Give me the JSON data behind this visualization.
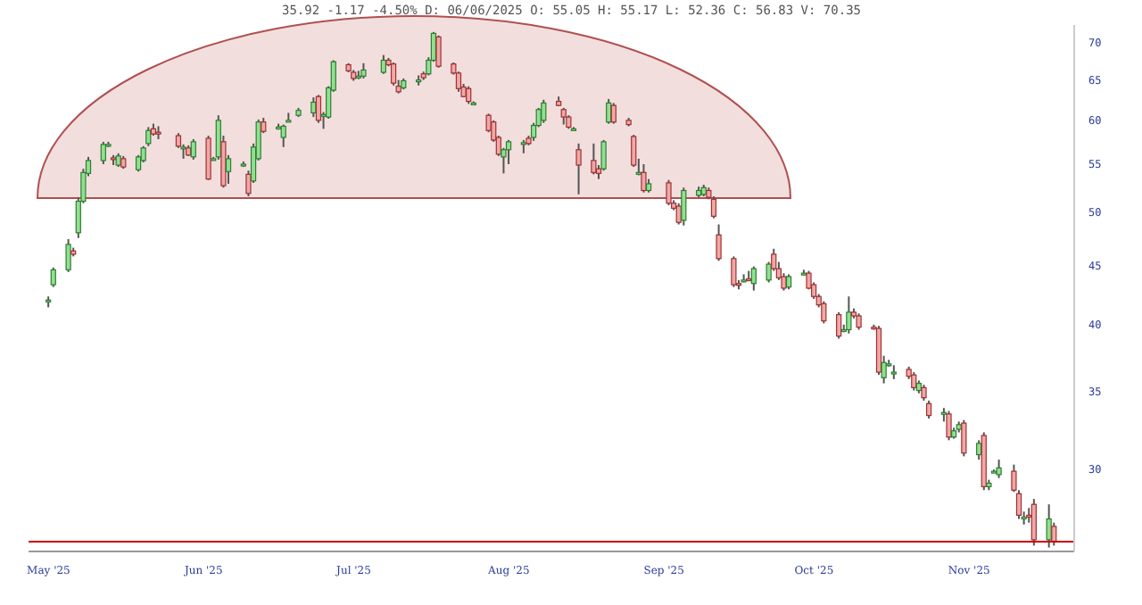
{
  "chart_data": {
    "type": "candlestick",
    "subtitle": "35.92 -1.17 -4.50% D: 06/06/2025 O: 55.05 H: 55.17 L: 52.36 C: 56.83 V: 70.35",
    "x": [
      "2025-05-01",
      "2025-05-02",
      "2025-05-05",
      "2025-05-06",
      "2025-05-07",
      "2025-05-08",
      "2025-05-09",
      "2025-05-12",
      "2025-05-13",
      "2025-05-14",
      "2025-05-15",
      "2025-05-16",
      "2025-05-19",
      "2025-05-20",
      "2025-05-21",
      "2025-05-22",
      "2025-05-23",
      "2025-05-27",
      "2025-05-28",
      "2025-05-29",
      "2025-05-30",
      "2025-06-02",
      "2025-06-03",
      "2025-06-04",
      "2025-06-05",
      "2025-06-06",
      "2025-06-09",
      "2025-06-10",
      "2025-06-11",
      "2025-06-12",
      "2025-06-13",
      "2025-06-16",
      "2025-06-17",
      "2025-06-18",
      "2025-06-20",
      "2025-06-23",
      "2025-06-24",
      "2025-06-25",
      "2025-06-26",
      "2025-06-27",
      "2025-06-30",
      "2025-07-01",
      "2025-07-02",
      "2025-07-03",
      "2025-07-07",
      "2025-07-08",
      "2025-07-09",
      "2025-07-10",
      "2025-07-11",
      "2025-07-14",
      "2025-07-15",
      "2025-07-16",
      "2025-07-17",
      "2025-07-18",
      "2025-07-21",
      "2025-07-22",
      "2025-07-23",
      "2025-07-24",
      "2025-07-25",
      "2025-07-28",
      "2025-07-29",
      "2025-07-30",
      "2025-07-31",
      "2025-08-01",
      "2025-08-04",
      "2025-08-05",
      "2025-08-06",
      "2025-08-07",
      "2025-08-08",
      "2025-08-11",
      "2025-08-12",
      "2025-08-13",
      "2025-08-14",
      "2025-08-15",
      "2025-08-18",
      "2025-08-19",
      "2025-08-20",
      "2025-08-21",
      "2025-08-22",
      "2025-08-25",
      "2025-08-26",
      "2025-08-27",
      "2025-08-28",
      "2025-08-29",
      "2025-09-02",
      "2025-09-03",
      "2025-09-04",
      "2025-09-05",
      "2025-09-08",
      "2025-09-09",
      "2025-09-10",
      "2025-09-11",
      "2025-09-12",
      "2025-09-15",
      "2025-09-16",
      "2025-09-17",
      "2025-09-18",
      "2025-09-19",
      "2025-09-22",
      "2025-09-23",
      "2025-09-24",
      "2025-09-25",
      "2025-09-26",
      "2025-09-29",
      "2025-09-30",
      "2025-10-01",
      "2025-10-02",
      "2025-10-03",
      "2025-10-06",
      "2025-10-07",
      "2025-10-08",
      "2025-10-09",
      "2025-10-10",
      "2025-10-13",
      "2025-10-14",
      "2025-10-15",
      "2025-10-16",
      "2025-10-17",
      "2025-10-20",
      "2025-10-21",
      "2025-10-22",
      "2025-10-23",
      "2025-10-24",
      "2025-10-27",
      "2025-10-28",
      "2025-10-29",
      "2025-10-30",
      "2025-10-31",
      "2025-11-03",
      "2025-11-04",
      "2025-11-05",
      "2025-11-06",
      "2025-11-07",
      "2025-11-10",
      "2025-11-11",
      "2025-11-12",
      "2025-11-13",
      "2025-11-14",
      "2025-11-17",
      "2025-11-18"
    ],
    "ohlc": [
      [
        41.9,
        42.3,
        41.4,
        42.0
      ],
      [
        43.3,
        44.8,
        43.1,
        44.6
      ],
      [
        44.6,
        47.4,
        44.4,
        46.9
      ],
      [
        46.3,
        46.6,
        45.8,
        46.0
      ],
      [
        48.0,
        51.5,
        47.5,
        51.1
      ],
      [
        51.1,
        54.5,
        50.9,
        54.1
      ],
      [
        54.0,
        55.8,
        53.7,
        55.4
      ],
      [
        55.4,
        57.5,
        55.0,
        57.2
      ],
      [
        57.1,
        57.5,
        56.9,
        57.2
      ],
      [
        55.7,
        56.0,
        54.9,
        55.6
      ],
      [
        54.9,
        56.2,
        54.7,
        55.9
      ],
      [
        55.6,
        55.9,
        54.5,
        54.7
      ],
      [
        54.4,
        56.0,
        54.2,
        55.8
      ],
      [
        55.4,
        57.0,
        55.2,
        56.8
      ],
      [
        57.3,
        59.2,
        57.0,
        58.8
      ],
      [
        59.0,
        59.6,
        58.2,
        58.4
      ],
      [
        58.6,
        59.3,
        57.8,
        58.5
      ],
      [
        58.2,
        58.5,
        56.8,
        57.0
      ],
      [
        56.8,
        57.2,
        55.6,
        56.9
      ],
      [
        56.8,
        57.1,
        55.9,
        56.0
      ],
      [
        55.8,
        57.8,
        55.5,
        57.5
      ],
      [
        57.9,
        58.2,
        53.3,
        53.4
      ],
      [
        55.6,
        55.8,
        55.4,
        55.6
      ],
      [
        55.8,
        60.6,
        55.5,
        60.0
      ],
      [
        57.5,
        58.2,
        52.5,
        52.7
      ],
      [
        54.2,
        56.0,
        52.9,
        55.6
      ],
      [
        55.0,
        55.3,
        54.7,
        55.0
      ],
      [
        53.9,
        54.3,
        51.6,
        51.9
      ],
      [
        53.2,
        57.3,
        53.0,
        56.9
      ],
      [
        55.6,
        60.1,
        55.4,
        59.8
      ],
      [
        59.8,
        60.3,
        58.5,
        58.7
      ],
      [
        59.2,
        59.6,
        58.9,
        59.2
      ],
      [
        58.0,
        59.5,
        56.9,
        59.3
      ],
      [
        60.0,
        60.9,
        59.8,
        60.0
      ],
      [
        60.6,
        61.5,
        60.4,
        61.2
      ],
      [
        60.9,
        62.8,
        60.4,
        62.2
      ],
      [
        62.9,
        63.1,
        59.7,
        60.0
      ],
      [
        60.6,
        61.0,
        59.0,
        60.7
      ],
      [
        60.4,
        64.2,
        60.2,
        64.0
      ],
      [
        63.7,
        67.6,
        63.5,
        67.4
      ],
      [
        67.0,
        67.2,
        66.0,
        66.2
      ],
      [
        66.0,
        66.3,
        64.9,
        65.2
      ],
      [
        65.4,
        66.2,
        65.1,
        65.5
      ],
      [
        65.5,
        67.2,
        65.2,
        66.3
      ],
      [
        66.0,
        68.3,
        65.8,
        67.6
      ],
      [
        67.6,
        67.9,
        66.8,
        67.0
      ],
      [
        67.1,
        67.3,
        64.3,
        64.6
      ],
      [
        64.2,
        65.0,
        63.3,
        63.5
      ],
      [
        64.0,
        65.2,
        63.8,
        64.9
      ],
      [
        65.0,
        65.6,
        64.3,
        65.0
      ],
      [
        65.8,
        66.1,
        65.0,
        65.3
      ],
      [
        65.8,
        68.0,
        65.6,
        67.6
      ],
      [
        67.6,
        71.5,
        67.4,
        71.3
      ],
      [
        70.8,
        71.0,
        66.6,
        66.8
      ],
      [
        67.1,
        67.3,
        65.7,
        65.9
      ],
      [
        65.9,
        66.1,
        63.5,
        63.9
      ],
      [
        64.1,
        64.5,
        62.8,
        62.9
      ],
      [
        63.9,
        64.2,
        62.0,
        62.3
      ],
      [
        62.1,
        62.3,
        61.9,
        62.1
      ],
      [
        60.6,
        60.8,
        58.6,
        58.8
      ],
      [
        59.8,
        60.0,
        57.5,
        57.7
      ],
      [
        58.0,
        58.2,
        55.9,
        56.1
      ],
      [
        55.8,
        56.8,
        54.0,
        56.6
      ],
      [
        56.6,
        57.7,
        55.0,
        57.5
      ],
      [
        57.3,
        57.7,
        56.2,
        57.4
      ],
      [
        57.9,
        58.2,
        57.1,
        57.3
      ],
      [
        58.0,
        59.7,
        57.6,
        59.4
      ],
      [
        59.4,
        61.5,
        59.2,
        61.3
      ],
      [
        60.0,
        62.5,
        59.7,
        62.1
      ],
      [
        62.3,
        62.9,
        61.7,
        61.8
      ],
      [
        61.3,
        61.5,
        59.5,
        60.4
      ],
      [
        60.4,
        60.6,
        59.0,
        59.2
      ],
      [
        59.0,
        59.2,
        58.8,
        59.0
      ],
      [
        56.6,
        57.3,
        51.8,
        54.9
      ],
      [
        55.4,
        57.3,
        53.9,
        54.1
      ],
      [
        54.5,
        54.9,
        53.4,
        54.0
      ],
      [
        54.5,
        57.7,
        54.3,
        57.5
      ],
      [
        59.8,
        62.6,
        59.6,
        62.1
      ],
      [
        61.8,
        62.1,
        59.6,
        59.8
      ],
      [
        60.0,
        60.3,
        59.3,
        59.5
      ],
      [
        58.1,
        58.3,
        54.7,
        54.9
      ],
      [
        54.1,
        55.6,
        53.8,
        54.1
      ],
      [
        54.1,
        55.0,
        52.0,
        52.2
      ],
      [
        52.2,
        53.4,
        52.0,
        52.9
      ],
      [
        53.0,
        53.3,
        50.7,
        50.9
      ],
      [
        50.9,
        51.2,
        50.2,
        50.4
      ],
      [
        50.6,
        50.9,
        48.8,
        49.0
      ],
      [
        49.2,
        52.5,
        48.7,
        52.2
      ],
      [
        51.7,
        52.6,
        51.5,
        52.2
      ],
      [
        51.8,
        52.8,
        51.6,
        52.5
      ],
      [
        52.2,
        52.5,
        51.3,
        51.5
      ],
      [
        51.3,
        51.6,
        49.4,
        49.6
      ],
      [
        47.8,
        48.8,
        45.4,
        45.6
      ],
      [
        45.6,
        45.8,
        43.1,
        43.3
      ],
      [
        43.4,
        43.7,
        42.9,
        43.3
      ],
      [
        43.7,
        44.2,
        43.5,
        43.7
      ],
      [
        43.8,
        44.5,
        43.6,
        43.7
      ],
      [
        43.4,
        44.9,
        42.8,
        44.7
      ],
      [
        43.7,
        45.3,
        43.5,
        45.1
      ],
      [
        46.0,
        46.5,
        44.5,
        44.7
      ],
      [
        44.7,
        45.3,
        43.7,
        43.9
      ],
      [
        44.0,
        44.3,
        42.8,
        43.0
      ],
      [
        43.1,
        44.2,
        42.9,
        44.0
      ],
      [
        44.3,
        44.6,
        44.1,
        44.3
      ],
      [
        44.3,
        44.5,
        42.9,
        43.0
      ],
      [
        43.3,
        43.5,
        42.1,
        42.3
      ],
      [
        42.3,
        42.5,
        41.4,
        41.6
      ],
      [
        41.7,
        41.9,
        40.1,
        40.3
      ],
      [
        40.8,
        41.0,
        38.9,
        39.1
      ],
      [
        39.6,
        40.0,
        39.4,
        39.6
      ],
      [
        39.6,
        42.3,
        39.3,
        41.0
      ],
      [
        41.0,
        41.3,
        40.5,
        40.7
      ],
      [
        40.7,
        40.9,
        39.6,
        39.8
      ],
      [
        39.8,
        40.0,
        39.6,
        39.7
      ],
      [
        39.7,
        39.9,
        36.2,
        36.4
      ],
      [
        36.0,
        37.6,
        35.6,
        37.1
      ],
      [
        37.0,
        37.3,
        36.8,
        37.0
      ],
      [
        36.4,
        36.9,
        35.9,
        36.4
      ],
      [
        36.6,
        36.8,
        35.9,
        36.1
      ],
      [
        36.2,
        36.4,
        35.1,
        35.3
      ],
      [
        35.1,
        35.8,
        34.9,
        35.6
      ],
      [
        35.3,
        35.5,
        34.4,
        34.6
      ],
      [
        34.2,
        34.4,
        33.2,
        33.4
      ],
      [
        33.6,
        33.9,
        33.0,
        33.6
      ],
      [
        33.5,
        33.7,
        31.8,
        32.0
      ],
      [
        32.0,
        32.6,
        31.9,
        32.4
      ],
      [
        32.5,
        33.0,
        32.3,
        32.8
      ],
      [
        32.9,
        33.1,
        30.8,
        31.0
      ],
      [
        30.9,
        31.8,
        30.6,
        31.6
      ],
      [
        32.1,
        32.3,
        28.8,
        29.0
      ],
      [
        29.0,
        29.4,
        28.8,
        29.2
      ],
      [
        29.9,
        30.0,
        29.8,
        29.9
      ],
      [
        29.7,
        30.6,
        29.5,
        30.1
      ],
      [
        29.9,
        30.3,
        28.7,
        28.8
      ],
      [
        28.6,
        28.8,
        27.2,
        27.4
      ],
      [
        27.3,
        27.6,
        26.9,
        27.3
      ],
      [
        27.4,
        27.8,
        27.0,
        27.3
      ],
      [
        28.0,
        28.3,
        25.8,
        26.1
      ],
      [
        26.1,
        28.0,
        25.7,
        27.2
      ],
      [
        26.8,
        27.0,
        25.8,
        26.0
      ]
    ],
    "log": true,
    "grid": false,
    "legend": false,
    "xlim": [
      "2025-04-27",
      "2025-11-22"
    ],
    "xticks": [
      {
        "value": "2025-05-01",
        "label": "May '25"
      },
      {
        "value": "2025-06-01",
        "label": "Jun '25"
      },
      {
        "value": "2025-07-01",
        "label": "Jul '25"
      },
      {
        "value": "2025-08-01",
        "label": "Aug '25"
      },
      {
        "value": "2025-09-01",
        "label": "Sep '25"
      },
      {
        "value": "2025-10-01",
        "label": "Oct '25"
      },
      {
        "value": "2025-11-01",
        "label": "Nov '25"
      }
    ],
    "ylim": [
      25.5,
      72.5
    ],
    "yticks": [
      30,
      35,
      40,
      45,
      50,
      55,
      60,
      65,
      70
    ],
    "ref_lines": [
      {
        "axis": "y",
        "value": 26.0,
        "color": "#cc0000"
      }
    ]
  }
}
